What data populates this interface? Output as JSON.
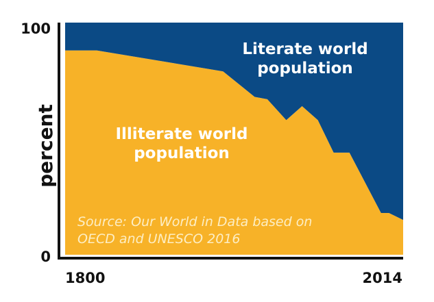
{
  "chart_data": {
    "type": "stacked-area",
    "ylabel": "percent",
    "annotation": "Source: Our World in Data based on OECD and UNESCO 2016",
    "x": [
      1800,
      1820,
      1900,
      1920,
      1928,
      1940,
      1950,
      1960,
      1970,
      1980,
      2000,
      2005,
      2014
    ],
    "series": [
      {
        "name": "Illiterate world population",
        "color": "#f7b228",
        "values": [
          88,
          88,
          79,
          68,
          67,
          58,
          64,
          58,
          44,
          44,
          18,
          18,
          15
        ]
      },
      {
        "name": "Literate world population",
        "color": "#0b4a85",
        "values": [
          12,
          12,
          21,
          32,
          33,
          42,
          36,
          42,
          56,
          56,
          82,
          82,
          85
        ]
      }
    ],
    "xlim": [
      1800,
      2014
    ],
    "xticks": [
      1800,
      2014
    ],
    "ylim": [
      0,
      100
    ],
    "yticks": [
      0,
      100
    ],
    "grid": false
  }
}
